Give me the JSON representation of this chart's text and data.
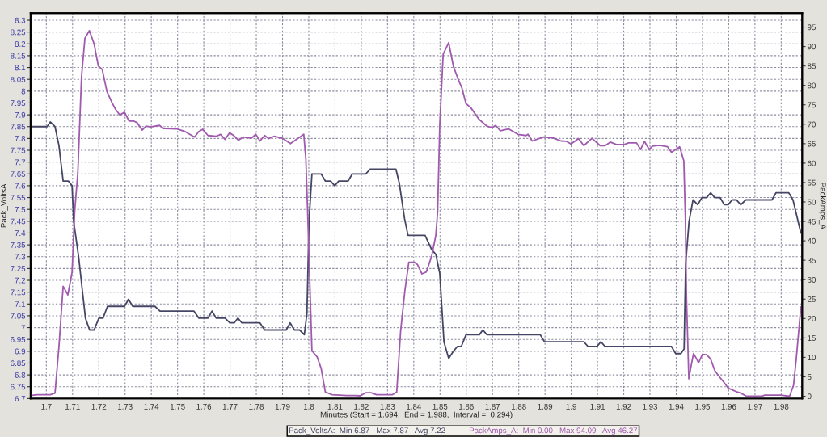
{
  "chart_data": {
    "type": "line",
    "xlabel": "Minutes (Start = 1.694,  End = 1.988,  Interval =  0.294)",
    "ylabel": "Pack_VoltsA",
    "y2label": "PackAmps_A",
    "xlim": [
      1.694,
      1.988
    ],
    "xticks": [
      1.7,
      1.71,
      1.72,
      1.73,
      1.74,
      1.75,
      1.76,
      1.77,
      1.78,
      1.79,
      1.8,
      1.81,
      1.82,
      1.83,
      1.84,
      1.85,
      1.86,
      1.87,
      1.88,
      1.89,
      1.9,
      1.91,
      1.92,
      1.93,
      1.94,
      1.95,
      1.96,
      1.97,
      1.98
    ],
    "ylim": [
      6.7,
      8.33
    ],
    "yticks": [
      6.7,
      6.75,
      6.8,
      6.85,
      6.9,
      6.95,
      7,
      7.05,
      7.1,
      7.15,
      7.2,
      7.25,
      7.3,
      7.35,
      7.4,
      7.45,
      7.5,
      7.55,
      7.6,
      7.65,
      7.7,
      7.75,
      7.8,
      7.85,
      7.9,
      7.95,
      8,
      8.05,
      8.1,
      8.15,
      8.2,
      8.25,
      8.3
    ],
    "y2lim": [
      -0.6,
      98.6
    ],
    "y2ticks": [
      0,
      5,
      10,
      15,
      20,
      25,
      30,
      35,
      40,
      45,
      50,
      55,
      60,
      65,
      70,
      75,
      80,
      85,
      90,
      95
    ],
    "grid": true,
    "legend": "bottom",
    "series": [
      {
        "name": "Pack_VoltsA:  Min 6.87   Max 7.87   Avg 7.22",
        "color": "#454565",
        "x": [
          1.694,
          1.7003,
          1.7015,
          1.7033,
          1.7048,
          1.7064,
          1.7084,
          1.7098,
          1.7104,
          1.7123,
          1.7149,
          1.7165,
          1.7182,
          1.72,
          1.7216,
          1.7233,
          1.7298,
          1.7313,
          1.7329,
          1.7414,
          1.7433,
          1.7562,
          1.7581,
          1.7616,
          1.7631,
          1.7647,
          1.7681,
          1.7699,
          1.7716,
          1.773,
          1.7745,
          1.7814,
          1.7832,
          1.7914,
          1.7929,
          1.7945,
          1.7965,
          1.7983,
          1.7993,
          1.8001,
          1.8012,
          1.8047,
          1.8063,
          1.8083,
          1.8099,
          1.8114,
          1.815,
          1.8166,
          1.8217,
          1.8234,
          1.8332,
          1.8345,
          1.8365,
          1.8378,
          1.8443,
          1.8468,
          1.8484,
          1.8499,
          1.8515,
          1.8533,
          1.8551,
          1.8566,
          1.8581,
          1.8599,
          1.865,
          1.8663,
          1.8679,
          1.8882,
          1.8898,
          1.9048,
          1.9064,
          1.9098,
          1.9113,
          1.9129,
          1.9382,
          1.9398,
          1.9418,
          1.943,
          1.9436,
          1.9449,
          1.9464,
          1.9482,
          1.9498,
          1.9516,
          1.9531,
          1.9547,
          1.9567,
          1.9583,
          1.9598,
          1.9613,
          1.9629,
          1.9646,
          1.9665,
          1.9765,
          1.978,
          1.9829,
          1.9845,
          1.986,
          1.9875
        ],
        "values": [
          7.85,
          7.85,
          7.87,
          7.85,
          7.77,
          7.62,
          7.62,
          7.6,
          7.45,
          7.3,
          7.04,
          6.99,
          6.99,
          7.04,
          7.04,
          7.09,
          7.09,
          7.12,
          7.09,
          7.09,
          7.07,
          7.07,
          7.04,
          7.04,
          7.07,
          7.04,
          7.04,
          7.02,
          7.02,
          7.04,
          7.02,
          7.02,
          6.99,
          6.99,
          7.02,
          6.99,
          6.99,
          6.97,
          7.06,
          7.45,
          7.65,
          7.65,
          7.62,
          7.62,
          7.6,
          7.62,
          7.62,
          7.65,
          7.65,
          7.67,
          7.67,
          7.61,
          7.46,
          7.39,
          7.39,
          7.33,
          7.31,
          7.23,
          6.94,
          6.87,
          6.9,
          6.92,
          6.92,
          6.97,
          6.97,
          6.99,
          6.97,
          6.97,
          6.94,
          6.94,
          6.92,
          6.92,
          6.94,
          6.92,
          6.92,
          6.89,
          6.89,
          6.91,
          7.27,
          7.45,
          7.54,
          7.52,
          7.55,
          7.55,
          7.57,
          7.55,
          7.55,
          7.52,
          7.52,
          7.54,
          7.54,
          7.52,
          7.54,
          7.54,
          7.57,
          7.57,
          7.54,
          7.47,
          7.4
        ]
      },
      {
        "name": "PackAmps_A:  Min 0.00   Max 94.09   Avg 46.27",
        "color": "#a05aae",
        "axis": "y2",
        "x": [
          1.694,
          1.6964,
          1.7015,
          1.7033,
          1.7048,
          1.7064,
          1.7082,
          1.7098,
          1.7108,
          1.712,
          1.7134,
          1.7147,
          1.7164,
          1.7182,
          1.7198,
          1.7213,
          1.7231,
          1.725,
          1.7264,
          1.728,
          1.7298,
          1.7315,
          1.7334,
          1.7346,
          1.7365,
          1.738,
          1.7397,
          1.7431,
          1.7447,
          1.7498,
          1.7529,
          1.7565,
          1.758,
          1.7596,
          1.7616,
          1.7647,
          1.7664,
          1.7681,
          1.7698,
          1.7714,
          1.7732,
          1.775,
          1.7781,
          1.7798,
          1.7814,
          1.7832,
          1.7847,
          1.7868,
          1.7899,
          1.793,
          1.7981,
          1.7989,
          1.7996,
          1.8012,
          1.8032,
          1.8047,
          1.8063,
          1.8089,
          1.8145,
          1.8176,
          1.8196,
          1.8217,
          1.8237,
          1.8258,
          1.8319,
          1.8335,
          1.835,
          1.8366,
          1.8381,
          1.8402,
          1.8414,
          1.8431,
          1.8448,
          1.8468,
          1.8484,
          1.8491,
          1.8499,
          1.8512,
          1.8533,
          1.8551,
          1.8568,
          1.8583,
          1.8599,
          1.8617,
          1.8648,
          1.8679,
          1.8697,
          1.8712,
          1.873,
          1.8761,
          1.8797,
          1.8828,
          1.8835,
          1.8851,
          1.8894,
          1.893,
          1.8961,
          1.8982,
          1.8999,
          1.9028,
          1.9048,
          1.9079,
          1.911,
          1.9129,
          1.9149,
          1.9172,
          1.9202,
          1.9218,
          1.9249,
          1.9264,
          1.9279,
          1.9297,
          1.931,
          1.9336,
          1.9367,
          1.9382,
          1.9398,
          1.9413,
          1.9429,
          1.9435,
          1.9439,
          1.9448,
          1.9457,
          1.9466,
          1.9478,
          1.9485,
          1.95,
          1.9516,
          1.9531,
          1.9547,
          1.9562,
          1.9583,
          1.9598,
          1.9632,
          1.9646,
          1.9665,
          1.968,
          1.9726,
          1.9737,
          1.9798,
          1.9832,
          1.9847,
          1.9857,
          1.9875
        ],
        "values": [
          0.2,
          0.4,
          0.4,
          0.8,
          12.7,
          28.3,
          26.1,
          31.9,
          47.6,
          57.5,
          82.1,
          92.1,
          94.1,
          90.7,
          85.0,
          84.1,
          78.4,
          75.6,
          73.8,
          72.4,
          73.1,
          70.8,
          70.8,
          70.4,
          68.5,
          69.5,
          69.3,
          69.7,
          68.9,
          68.8,
          68.1,
          66.7,
          68.1,
          68.7,
          67.1,
          66.9,
          67.4,
          66.1,
          67.8,
          67.1,
          65.9,
          66.7,
          66.4,
          67.4,
          65.7,
          67.1,
          66.3,
          66.9,
          66.4,
          65.0,
          67.4,
          60.9,
          46.6,
          11.7,
          10.1,
          7.2,
          1.1,
          0.4,
          0.2,
          0.2,
          0.1,
          0.9,
          0.9,
          0.4,
          0.4,
          1.1,
          16.8,
          27.1,
          34.5,
          34.5,
          33.9,
          31.5,
          32.0,
          36.0,
          41.4,
          47.6,
          69.8,
          88.0,
          91.0,
          84.9,
          81.8,
          79.4,
          75.3,
          74.3,
          71.3,
          69.5,
          69.1,
          69.7,
          68.3,
          68.8,
          67.4,
          67.1,
          67.4,
          65.7,
          66.7,
          66.5,
          65.7,
          65.6,
          64.9,
          66.3,
          64.5,
          66.4,
          64.5,
          64.5,
          65.4,
          64.8,
          64.8,
          65.2,
          65.2,
          63.5,
          65.6,
          63.5,
          64.4,
          64.6,
          64.2,
          62.8,
          63.5,
          64.2,
          60.6,
          45.5,
          25.7,
          4.5,
          7.9,
          11.0,
          9.6,
          8.6,
          10.8,
          10.7,
          9.6,
          6.6,
          5.2,
          3.5,
          2.1,
          1.1,
          0.8,
          0.1,
          0,
          0,
          0.3,
          0.3,
          0,
          2.8,
          9.3,
          23.0
        ]
      }
    ]
  }
}
